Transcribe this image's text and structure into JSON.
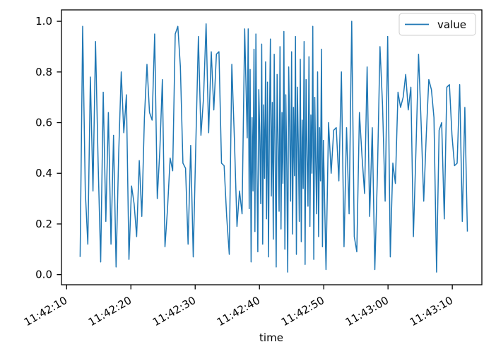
{
  "figure": {
    "background": "#ffffff"
  },
  "chart_data": {
    "type": "line",
    "title": "",
    "xlabel": "time",
    "ylabel": "",
    "legend_label": "value",
    "legend_position": "upper right",
    "grid": false,
    "line_color": "#1f77b4",
    "axis_color": "#000000",
    "legend_border_color": "#cccccc",
    "x_unit": "seconds after 11:42:10",
    "xlim": [
      -0.8,
      64.6
    ],
    "ylim": [
      -0.04,
      1.045
    ],
    "x_ticks": [
      {
        "t": 0,
        "label": "11:42:10"
      },
      {
        "t": 10,
        "label": "11:42:20"
      },
      {
        "t": 20,
        "label": "11:42:30"
      },
      {
        "t": 30,
        "label": "11:42:40"
      },
      {
        "t": 40,
        "label": "11:42:50"
      },
      {
        "t": 50,
        "label": "11:43:00"
      },
      {
        "t": 60,
        "label": "11:43:10"
      }
    ],
    "y_ticks": [
      {
        "v": 0.0,
        "label": "0.0"
      },
      {
        "v": 0.2,
        "label": "0.2"
      },
      {
        "v": 0.4,
        "label": "0.4"
      },
      {
        "v": 0.6,
        "label": "0.6"
      },
      {
        "v": 0.8,
        "label": "0.8"
      },
      {
        "v": 1.0,
        "label": "1.0"
      }
    ],
    "series": [
      {
        "name": "value",
        "segments": [
          {
            "t0": 2.1,
            "dt": 0.4,
            "values": [
              0.07,
              0.98,
              0.33,
              0.12,
              0.78,
              0.33,
              0.92,
              0.44,
              0.05,
              0.72,
              0.21,
              0.64,
              0.12,
              0.55,
              0.03,
              0.48,
              0.8,
              0.56,
              0.71,
              0.06,
              0.35,
              0.28,
              0.15,
              0.45,
              0.23,
              0.62,
              0.83,
              0.64,
              0.61,
              0.95,
              0.3,
              0.49,
              0.77,
              0.11,
              0.26,
              0.46,
              0.41,
              0.95,
              0.98,
              0.82,
              0.44,
              0.42,
              0.12,
              0.51,
              0.07,
              0.51,
              0.94,
              0.55,
              0.7,
              0.99,
              0.56,
              0.88,
              0.65,
              0.87,
              0.88,
              0.44,
              0.43,
              0.23,
              0.08,
              0.83,
              0.54,
              0.19,
              0.33,
              0.24,
              0.97,
              0.54
            ]
          },
          {
            "t0": 28.25,
            "dt": 0.15,
            "values": [
              0.97,
              0.26,
              0.81,
              0.05,
              0.62,
              0.33,
              0.89,
              0.17,
              0.95,
              0.41,
              0.09,
              0.73,
              0.55,
              0.28,
              0.91,
              0.12,
              0.67,
              0.38,
              0.84,
              0.22,
              0.76,
              0.07,
              0.59,
              0.93,
              0.31,
              0.68,
              0.14,
              0.87,
              0.46,
              0.03,
              0.79,
              0.52,
              0.25,
              0.9,
              0.18,
              0.64,
              0.36,
              0.96,
              0.1,
              0.71,
              0.43,
              0.01,
              0.82,
              0.57,
              0.29,
              0.88,
              0.16,
              0.66,
              0.39,
              0.94,
              0.08,
              0.74,
              0.5,
              0.21,
              0.85,
              0.13,
              0.61,
              0.34,
              0.92,
              0.04,
              0.77,
              0.48,
              0.27,
              0.86,
              0.19,
              0.63,
              0.4,
              0.98,
              0.06,
              0.7,
              0.45,
              0.24,
              0.8,
              0.15,
              0.58,
              0.37,
              0.89,
              0.11,
              0.53
            ]
          },
          {
            "t0": 40.35,
            "dt": 0.4,
            "values": [
              0.02,
              0.6,
              0.4,
              0.57,
              0.58,
              0.37,
              0.8,
              0.11,
              0.58,
              0.24,
              1.0,
              0.15,
              0.09,
              0.64,
              0.47,
              0.32,
              0.82,
              0.23,
              0.58,
              0.02,
              0.4,
              0.9,
              0.67,
              0.29,
              0.94,
              0.07,
              0.44,
              0.36,
              0.72,
              0.66,
              0.7,
              0.79,
              0.65,
              0.74,
              0.15,
              0.49,
              0.87,
              0.6,
              0.29,
              0.55,
              0.77,
              0.73,
              0.62,
              0.01,
              0.57,
              0.6,
              0.22,
              0.74,
              0.75,
              0.55,
              0.43,
              0.44,
              0.75,
              0.21,
              0.66,
              0.17
            ]
          }
        ]
      }
    ]
  }
}
